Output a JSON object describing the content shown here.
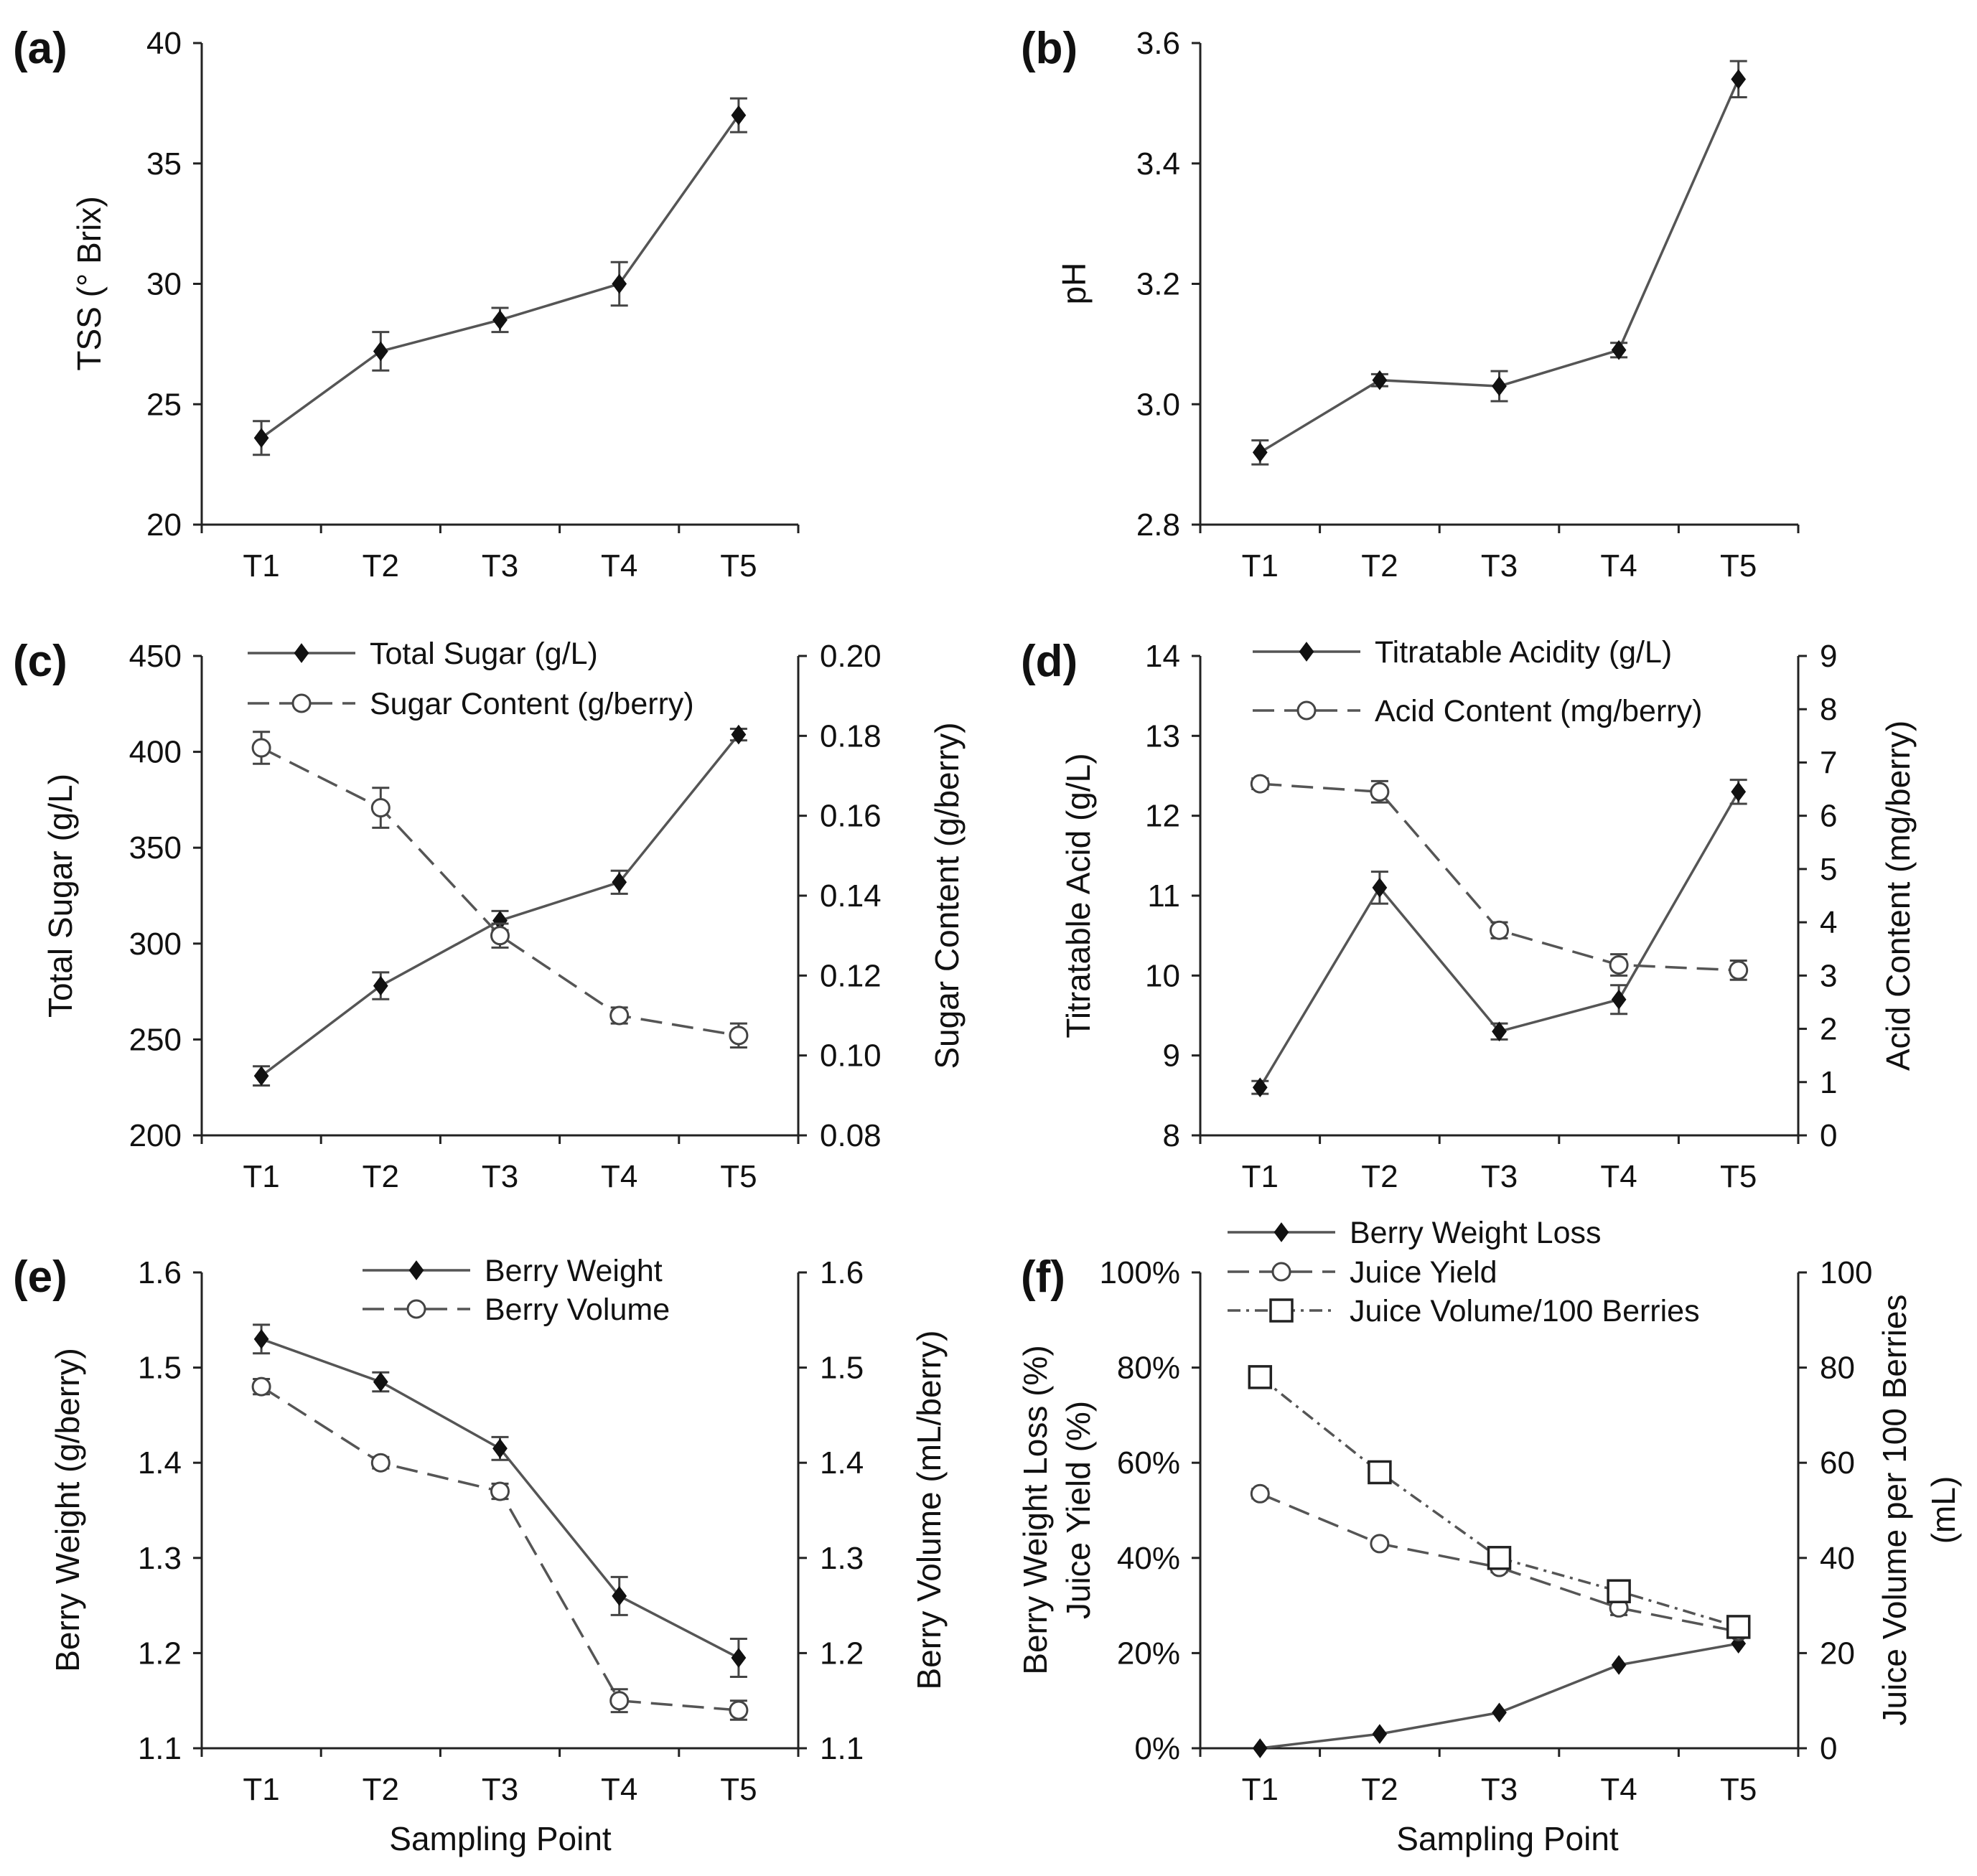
{
  "chart_data": [
    {
      "id": "a",
      "panel_label": "(a)",
      "type": "line",
      "categories": [
        "T1",
        "T2",
        "T3",
        "T4",
        "T5"
      ],
      "xlabel": "",
      "ylabel": "TSS (° Brix)",
      "ylim": [
        20,
        40
      ],
      "yticks": [
        "20",
        "25",
        "30",
        "35",
        "40"
      ],
      "series": [
        {
          "name": "TSS",
          "axis": "left",
          "marker": "diamond",
          "dash": "solid",
          "values": [
            23.6,
            27.2,
            28.5,
            30.0,
            37.0
          ],
          "errors": [
            0.7,
            0.8,
            0.5,
            0.9,
            0.7
          ]
        }
      ]
    },
    {
      "id": "b",
      "panel_label": "(b)",
      "type": "line",
      "categories": [
        "T1",
        "T2",
        "T3",
        "T4",
        "T5"
      ],
      "xlabel": "",
      "ylabel": "pH",
      "ylim": [
        2.8,
        3.6
      ],
      "yticks": [
        "2.8",
        "3.0",
        "3.2",
        "3.4",
        "3.6"
      ],
      "series": [
        {
          "name": "pH",
          "axis": "left",
          "marker": "diamond",
          "dash": "solid",
          "values": [
            2.92,
            3.04,
            3.03,
            3.09,
            3.54
          ],
          "errors": [
            0.02,
            0.01,
            0.025,
            0.012,
            0.03
          ]
        }
      ]
    },
    {
      "id": "c",
      "panel_label": "(c)",
      "type": "line",
      "categories": [
        "T1",
        "T2",
        "T3",
        "T4",
        "T5"
      ],
      "xlabel": "",
      "ylabel": "Total Sugar (g/L)",
      "ylabel2": "Sugar Content (g/berry)",
      "ylim": [
        200,
        450
      ],
      "yticks": [
        "200",
        "250",
        "300",
        "350",
        "400",
        "450"
      ],
      "ylim2": [
        0.08,
        0.2
      ],
      "yticks2": [
        "0.08",
        "0.10",
        "0.12",
        "0.14",
        "0.16",
        "0.18",
        "0.20"
      ],
      "series": [
        {
          "name": "Total Sugar (g/L)",
          "axis": "left",
          "marker": "diamond",
          "dash": "solid",
          "values": [
            231,
            278,
            312,
            332,
            409
          ],
          "errors": [
            5,
            7,
            5,
            6,
            3
          ]
        },
        {
          "name": "Sugar Content (g/berry)",
          "axis": "right",
          "marker": "circle",
          "dash": "dashed",
          "values": [
            0.177,
            0.162,
            0.13,
            0.11,
            0.105
          ],
          "errors": [
            0.004,
            0.005,
            0.003,
            0.002,
            0.003
          ]
        }
      ]
    },
    {
      "id": "d",
      "panel_label": "(d)",
      "type": "line",
      "categories": [
        "T1",
        "T2",
        "T3",
        "T4",
        "T5"
      ],
      "xlabel": "",
      "ylabel": "Titratable Acid (g/L)",
      "ylabel2": "Acid Content (mg/berry)",
      "ylim": [
        8,
        14
      ],
      "yticks": [
        "8",
        "9",
        "10",
        "11",
        "12",
        "13",
        "14"
      ],
      "ylim2": [
        0,
        9
      ],
      "yticks2": [
        "0",
        "1",
        "2",
        "3",
        "4",
        "5",
        "6",
        "7",
        "8",
        "9"
      ],
      "series": [
        {
          "name": "Titratable Acidity (g/L)",
          "axis": "left",
          "marker": "diamond",
          "dash": "solid",
          "values": [
            8.6,
            11.1,
            9.3,
            9.7,
            12.3
          ],
          "errors": [
            0.08,
            0.2,
            0.1,
            0.18,
            0.15
          ]
        },
        {
          "name": "Acid Content (mg/berry)",
          "axis": "right",
          "marker": "circle",
          "dash": "dashed",
          "values": [
            6.6,
            6.45,
            3.85,
            3.2,
            3.1
          ],
          "errors": [
            0.1,
            0.2,
            0.15,
            0.2,
            0.18
          ]
        }
      ]
    },
    {
      "id": "e",
      "panel_label": "(e)",
      "type": "line",
      "categories": [
        "T1",
        "T2",
        "T3",
        "T4",
        "T5"
      ],
      "xlabel": "Sampling Point",
      "ylabel": "Berry Weight (g/berry)",
      "ylabel2": "Berry Volume (mL/berry)",
      "ylim": [
        1.1,
        1.6
      ],
      "yticks": [
        "1.1",
        "1.2",
        "1.3",
        "1.4",
        "1.5",
        "1.6"
      ],
      "ylim2": [
        1.1,
        1.6
      ],
      "yticks2": [
        "1.1",
        "1.2",
        "1.3",
        "1.4",
        "1.5",
        "1.6"
      ],
      "series": [
        {
          "name": "Berry Weight",
          "axis": "left",
          "marker": "diamond",
          "dash": "solid",
          "values": [
            1.53,
            1.485,
            1.415,
            1.26,
            1.195
          ],
          "errors": [
            0.015,
            0.01,
            0.012,
            0.02,
            0.02
          ]
        },
        {
          "name": "Berry Volume",
          "axis": "right",
          "marker": "circle",
          "dash": "dashed",
          "values": [
            1.48,
            1.4,
            1.37,
            1.15,
            1.14
          ],
          "errors": [
            0.008,
            0.006,
            0.008,
            0.012,
            0.01
          ]
        }
      ]
    },
    {
      "id": "f",
      "panel_label": "(f)",
      "type": "line",
      "categories": [
        "T1",
        "T2",
        "T3",
        "T4",
        "T5"
      ],
      "xlabel": "Sampling Point",
      "ylabel": "Berry Weight Loss (%)",
      "ylabel_b": "Juice Yield (%)",
      "ylabel2": "Juice Volume per 100 Berries",
      "ylabel2_b": "(mL)",
      "ylim": [
        0,
        100
      ],
      "yticks": [
        "0%",
        "20%",
        "40%",
        "60%",
        "80%",
        "100%"
      ],
      "ylim2": [
        0,
        100
      ],
      "yticks2": [
        "0",
        "20",
        "40",
        "60",
        "80",
        "100"
      ],
      "series": [
        {
          "name": "Berry Weight Loss",
          "axis": "left",
          "marker": "diamond",
          "dash": "solid",
          "values": [
            0,
            3,
            7.5,
            17.5,
            22
          ],
          "errors": []
        },
        {
          "name": "Juice Yield",
          "axis": "left",
          "marker": "circle",
          "dash": "dashed",
          "values": [
            53.5,
            43,
            38,
            29.5,
            24.5
          ],
          "errors": [
            1,
            0.8,
            1,
            1.5,
            1
          ]
        },
        {
          "name": "Juice Volume/100 Berries",
          "axis": "right",
          "marker": "square",
          "dash": "dashdot",
          "values": [
            78,
            58,
            40,
            33,
            25.5
          ],
          "errors": []
        }
      ]
    }
  ]
}
